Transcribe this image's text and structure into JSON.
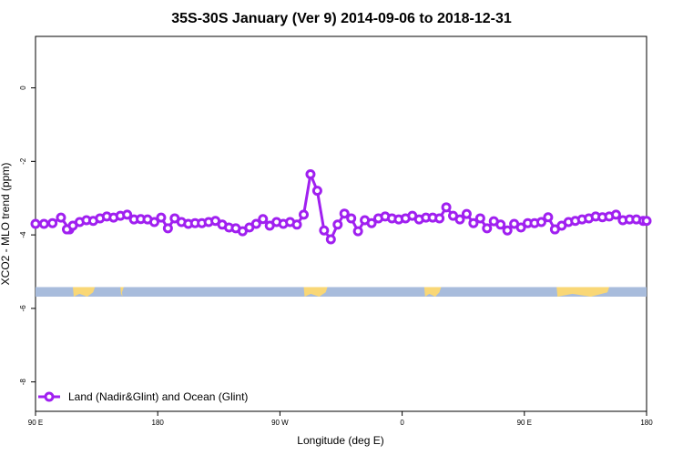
{
  "chart_data": {
    "type": "line",
    "title": "35S-30S January (Ver 9)   2014-09-06 to 2018-12-31",
    "xlabel": "Longitude (deg E)",
    "ylabel": "XCO2 - MLO trend (ppm)",
    "xlim": [
      90,
      450
    ],
    "ylim": [
      -8.8,
      1.4
    ],
    "x_ticks": [
      {
        "value": 90,
        "label": "90 E"
      },
      {
        "value": 162,
        "label": "180"
      },
      {
        "value": 234,
        "label": "90 W"
      },
      {
        "value": 306,
        "label": "0"
      },
      {
        "value": 378,
        "label": "90 E"
      },
      {
        "value": 450,
        "label": "180"
      }
    ],
    "y_ticks": [
      {
        "value": 0,
        "label": "0"
      },
      {
        "value": -2,
        "label": "-2"
      },
      {
        "value": -4,
        "label": "-4"
      },
      {
        "value": -6,
        "label": "-6"
      },
      {
        "value": -8,
        "label": "-8"
      }
    ],
    "grid": false,
    "legend_position": "bottom-left",
    "series": [
      {
        "name": "Land (Nadir&Glint) and Ocean (Glint)",
        "color": "#a020f0",
        "x": [
          90,
          95,
          100,
          105,
          110,
          108.5,
          112,
          116,
          120,
          124,
          128,
          132,
          136,
          140,
          144,
          148,
          152,
          156,
          160,
          164,
          168,
          172,
          176,
          180,
          184,
          188,
          192,
          196,
          200,
          204,
          208,
          212,
          216,
          220,
          224,
          228,
          232,
          236,
          240,
          244,
          248,
          252,
          256,
          260,
          264,
          268,
          272,
          276,
          280,
          284,
          288,
          292,
          296,
          300,
          304,
          308,
          312,
          316,
          320,
          324,
          328,
          332,
          336,
          340,
          344,
          348,
          352,
          356,
          360,
          364,
          368,
          372,
          376,
          380,
          384,
          388,
          392,
          396,
          400,
          404,
          408,
          412,
          416,
          420,
          424,
          428,
          432,
          436,
          440,
          444,
          448,
          450
        ],
        "y": [
          -3.7,
          -3.7,
          -3.68,
          -3.53,
          -3.85,
          -3.85,
          -3.75,
          -3.65,
          -3.6,
          -3.62,
          -3.55,
          -3.5,
          -3.53,
          -3.48,
          -3.45,
          -3.58,
          -3.57,
          -3.58,
          -3.65,
          -3.53,
          -3.82,
          -3.55,
          -3.65,
          -3.7,
          -3.68,
          -3.68,
          -3.65,
          -3.62,
          -3.72,
          -3.8,
          -3.82,
          -3.9,
          -3.8,
          -3.7,
          -3.57,
          -3.75,
          -3.65,
          -3.7,
          -3.65,
          -3.72,
          -3.45,
          -2.35,
          -2.8,
          -3.88,
          -4.12,
          -3.72,
          -3.42,
          -3.55,
          -3.9,
          -3.6,
          -3.68,
          -3.55,
          -3.5,
          -3.55,
          -3.58,
          -3.55,
          -3.48,
          -3.58,
          -3.53,
          -3.53,
          -3.55,
          -3.25,
          -3.48,
          -3.58,
          -3.43,
          -3.68,
          -3.55,
          -3.82,
          -3.63,
          -3.72,
          -3.88,
          -3.7,
          -3.8,
          -3.68,
          -3.68,
          -3.65,
          -3.52,
          -3.85,
          -3.75,
          -3.65,
          -3.62,
          -3.58,
          -3.55,
          -3.5,
          -3.52,
          -3.5,
          -3.45,
          -3.6,
          -3.58,
          -3.58,
          -3.62,
          -3.62
        ]
      }
    ],
    "land_ocean_strip": {
      "y_range": [
        -5.68,
        -5.42
      ],
      "ocean_color": "#a8bcdc",
      "land_color": "#f9d776",
      "land_segments": [
        [
          112,
          125
        ],
        [
          140,
          142
        ],
        [
          248,
          262
        ],
        [
          319,
          329
        ],
        [
          397,
          428
        ]
      ]
    }
  }
}
